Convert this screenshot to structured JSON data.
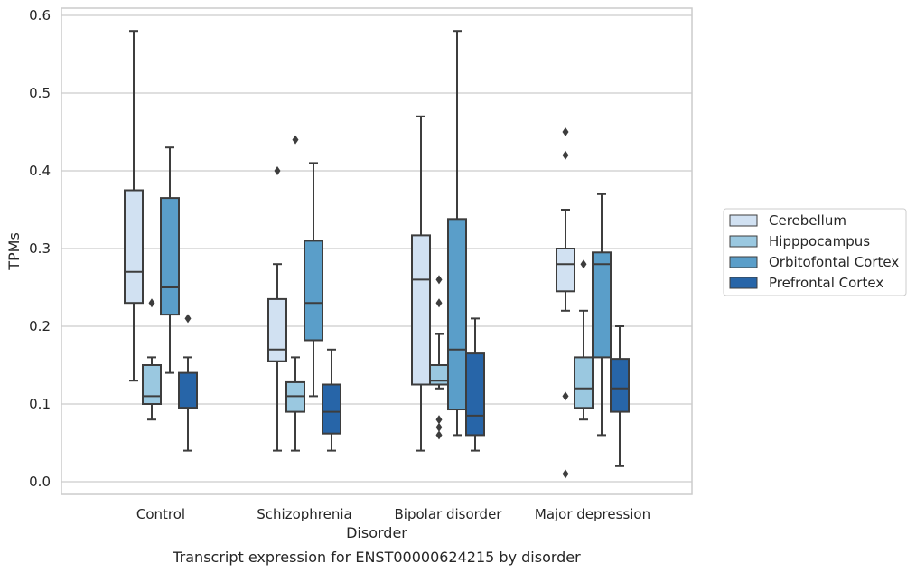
{
  "chart_data": {
    "type": "box",
    "title": "",
    "caption": "Transcript expression for ENST00000624215 by disorder",
    "xlabel": "Disorder",
    "ylabel": "TPMs",
    "ylim": [
      -0.017,
      0.61
    ],
    "yticks": [
      "0.0",
      "0.1",
      "0.2",
      "0.3",
      "0.4",
      "0.5",
      "0.6"
    ],
    "ytick_values": [
      0.0,
      0.1,
      0.2,
      0.3,
      0.4,
      0.5,
      0.6
    ],
    "grid": "horizontal",
    "legend_position": "right",
    "categories": [
      "Control",
      "Schizophrenia",
      "Bipolar disorder",
      "Major depression"
    ],
    "series": [
      {
        "name": "Cerebellum",
        "color": "#d1e1f2",
        "boxes": [
          {
            "whislo": 0.13,
            "q1": 0.23,
            "med": 0.27,
            "q3": 0.375,
            "whishi": 0.58,
            "fliers": []
          },
          {
            "whislo": 0.04,
            "q1": 0.155,
            "med": 0.17,
            "q3": 0.235,
            "whishi": 0.28,
            "fliers": [
              0.4
            ]
          },
          {
            "whislo": 0.04,
            "q1": 0.125,
            "med": 0.26,
            "q3": 0.317,
            "whishi": 0.47,
            "fliers": []
          },
          {
            "whislo": 0.22,
            "q1": 0.245,
            "med": 0.28,
            "q3": 0.3,
            "whishi": 0.35,
            "fliers": [
              0.45,
              0.42,
              0.11,
              0.01
            ]
          }
        ]
      },
      {
        "name": "Hipppocampus",
        "color": "#9ac8e0",
        "boxes": [
          {
            "whislo": 0.08,
            "q1": 0.1,
            "med": 0.11,
            "q3": 0.15,
            "whishi": 0.16,
            "fliers": [
              0.23
            ]
          },
          {
            "whislo": 0.04,
            "q1": 0.09,
            "med": 0.11,
            "q3": 0.128,
            "whishi": 0.16,
            "fliers": [
              0.44
            ]
          },
          {
            "whislo": 0.12,
            "q1": 0.125,
            "med": 0.13,
            "q3": 0.15,
            "whishi": 0.19,
            "fliers": [
              0.26,
              0.23,
              0.08,
              0.07,
              0.06
            ]
          },
          {
            "whislo": 0.08,
            "q1": 0.095,
            "med": 0.12,
            "q3": 0.16,
            "whishi": 0.22,
            "fliers": [
              0.28
            ]
          }
        ]
      },
      {
        "name": "Orbitofontal Cortex",
        "color": "#5a9ec9",
        "boxes": [
          {
            "whislo": 0.14,
            "q1": 0.215,
            "med": 0.25,
            "q3": 0.365,
            "whishi": 0.43,
            "fliers": []
          },
          {
            "whislo": 0.11,
            "q1": 0.182,
            "med": 0.23,
            "q3": 0.31,
            "whishi": 0.41,
            "fliers": []
          },
          {
            "whislo": 0.06,
            "q1": 0.093,
            "med": 0.17,
            "q3": 0.338,
            "whishi": 0.58,
            "fliers": []
          },
          {
            "whislo": 0.06,
            "q1": 0.16,
            "med": 0.28,
            "q3": 0.295,
            "whishi": 0.37,
            "fliers": []
          }
        ]
      },
      {
        "name": "Prefrontal Cortex",
        "color": "#2765a8",
        "boxes": [
          {
            "whislo": 0.04,
            "q1": 0.095,
            "med": 0.095,
            "q3": 0.14,
            "whishi": 0.16,
            "fliers": [
              0.21
            ]
          },
          {
            "whislo": 0.04,
            "q1": 0.062,
            "med": 0.09,
            "q3": 0.125,
            "whishi": 0.17,
            "fliers": []
          },
          {
            "whislo": 0.04,
            "q1": 0.06,
            "med": 0.085,
            "q3": 0.165,
            "whishi": 0.21,
            "fliers": []
          },
          {
            "whislo": 0.02,
            "q1": 0.09,
            "med": 0.12,
            "q3": 0.158,
            "whishi": 0.2,
            "fliers": []
          }
        ]
      }
    ]
  }
}
